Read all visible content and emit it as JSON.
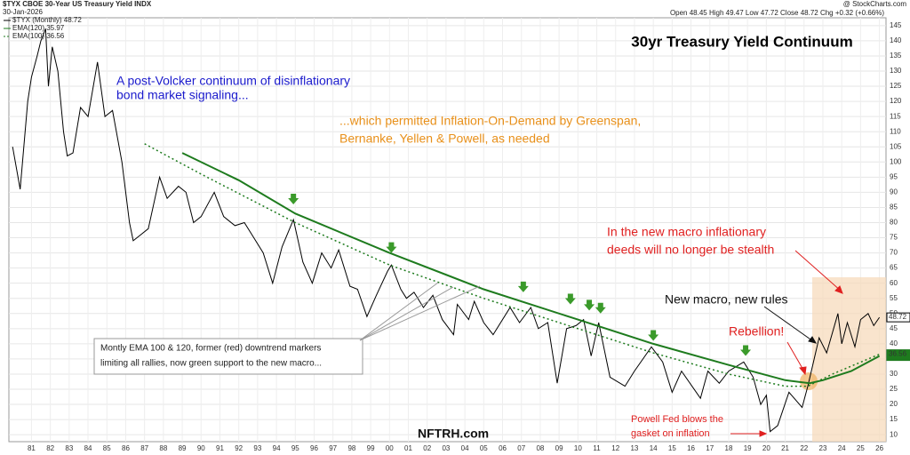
{
  "chart_data": {
    "type": "line",
    "title": "30yr Treasury Yield Continuum",
    "header": {
      "symbol": "$TYX CBOE 30-Year US Treasury Yield INDX",
      "date": "30-Jan-2026",
      "source": "@ StockCharts.com",
      "quote": "Open 48.45 High 49.47 Low 47.72 Close 48.72 Chg +0.32 (+0.66%)"
    },
    "legend": [
      "$TYX (Monthly) 48.72",
      "EMA(120) 35.97",
      "EMA(100) 36.56"
    ],
    "xlim": [
      1979.8,
      2026.35
    ],
    "ylim": [
      7.7,
      147.6
    ],
    "yticks": [
      10,
      15,
      20,
      25,
      30,
      35,
      40,
      45,
      50,
      55,
      60,
      65,
      70,
      75,
      80,
      85,
      90,
      95,
      100,
      105,
      110,
      115,
      120,
      125,
      130,
      135,
      140,
      145
    ],
    "xticks": [
      {
        "value": 1981,
        "label": "81"
      },
      {
        "value": 1982,
        "label": "82"
      },
      {
        "value": 1983,
        "label": "83"
      },
      {
        "value": 1984,
        "label": "84"
      },
      {
        "value": 1985,
        "label": "85"
      },
      {
        "value": 1986,
        "label": "86"
      },
      {
        "value": 1987,
        "label": "87"
      },
      {
        "value": 1988,
        "label": "88"
      },
      {
        "value": 1989,
        "label": "89"
      },
      {
        "value": 1990,
        "label": "90"
      },
      {
        "value": 1991,
        "label": "91"
      },
      {
        "value": 1992,
        "label": "92"
      },
      {
        "value": 1993,
        "label": "93"
      },
      {
        "value": 1994,
        "label": "94"
      },
      {
        "value": 1995,
        "label": "95"
      },
      {
        "value": 1996,
        "label": "96"
      },
      {
        "value": 1997,
        "label": "97"
      },
      {
        "value": 1998,
        "label": "98"
      },
      {
        "value": 1999,
        "label": "99"
      },
      {
        "value": 2000,
        "label": "00"
      },
      {
        "value": 2001,
        "label": "01"
      },
      {
        "value": 2002,
        "label": "02"
      },
      {
        "value": 2003,
        "label": "03"
      },
      {
        "value": 2004,
        "label": "04"
      },
      {
        "value": 2005,
        "label": "05"
      },
      {
        "value": 2006,
        "label": "06"
      },
      {
        "value": 2007,
        "label": "07"
      },
      {
        "value": 2008,
        "label": "08"
      },
      {
        "value": 2009,
        "label": "09"
      },
      {
        "value": 2010,
        "label": "10"
      },
      {
        "value": 2011,
        "label": "11"
      },
      {
        "value": 2012,
        "label": "12"
      },
      {
        "value": 2013,
        "label": "13"
      },
      {
        "value": 2014,
        "label": "14"
      },
      {
        "value": 2015,
        "label": "15"
      },
      {
        "value": 2016,
        "label": "16"
      },
      {
        "value": 2017,
        "label": "17"
      },
      {
        "value": 2018,
        "label": "18"
      },
      {
        "value": 2019,
        "label": "19"
      },
      {
        "value": 2020,
        "label": "20"
      },
      {
        "value": 2021,
        "label": "21"
      },
      {
        "value": 2022,
        "label": "22"
      },
      {
        "value": 2023,
        "label": "23"
      },
      {
        "value": 2024,
        "label": "24"
      },
      {
        "value": 2025,
        "label": "25"
      },
      {
        "value": 2026,
        "label": "26"
      }
    ],
    "grid": true,
    "series": [
      {
        "name": "$TYX (Monthly)",
        "color": "#000000",
        "width": 1,
        "x": [
          1980.0,
          1980.4,
          1980.8,
          1981.0,
          1981.3,
          1981.5,
          1981.75,
          1981.9,
          1982.1,
          1982.4,
          1982.7,
          1982.9,
          1983.2,
          1983.6,
          1984.0,
          1984.5,
          1984.9,
          1985.3,
          1985.8,
          1986.2,
          1986.4,
          1986.8,
          1987.2,
          1987.8,
          1988.2,
          1988.8,
          1989.2,
          1989.6,
          1990.0,
          1990.7,
          1991.2,
          1991.8,
          1992.3,
          1992.8,
          1993.3,
          1993.8,
          1994.3,
          1994.9,
          1995.4,
          1995.9,
          1996.4,
          1996.9,
          1997.3,
          1997.9,
          1998.3,
          1998.8,
          1999.3,
          1999.9,
          2000.1,
          2000.6,
          2000.9,
          2001.3,
          2001.8,
          2002.3,
          2002.8,
          2003.4,
          2003.6,
          2004.2,
          2004.5,
          2005.0,
          2005.5,
          2006.4,
          2006.9,
          2007.5,
          2007.9,
          2008.4,
          2008.9,
          2009.4,
          2009.9,
          2010.3,
          2010.7,
          2011.1,
          2011.7,
          2012.5,
          2013.0,
          2013.9,
          2014.5,
          2015.0,
          2015.5,
          2016.5,
          2016.9,
          2017.5,
          2018.0,
          2018.8,
          2019.3,
          2019.7,
          2020.0,
          2020.2,
          2020.6,
          2021.2,
          2021.9,
          2022.2,
          2022.5,
          2022.8,
          2023.2,
          2023.8,
          2024.0,
          2024.3,
          2024.7,
          2025.0,
          2025.4,
          2025.7,
          2026.0
        ],
        "values": [
          105,
          91,
          120,
          128,
          135,
          140,
          144,
          125,
          138,
          130,
          110,
          102,
          103,
          118,
          115,
          133,
          115,
          117,
          100,
          80,
          74,
          76,
          78,
          95,
          88,
          92,
          90,
          80,
          82,
          90,
          82,
          79,
          80,
          75,
          70,
          60,
          72,
          81,
          67,
          60,
          70,
          65,
          71,
          59,
          58,
          49,
          56,
          64,
          66,
          58,
          55,
          57,
          52,
          56,
          48,
          43,
          53,
          48,
          54,
          47,
          43,
          52,
          47,
          52,
          45,
          47,
          27,
          45,
          46,
          48,
          36,
          47,
          29,
          26,
          31,
          39,
          34,
          24,
          31,
          22,
          31,
          27,
          31,
          34,
          29,
          20,
          23,
          11,
          13,
          24,
          19,
          26,
          34,
          42,
          37,
          50,
          40,
          47,
          39,
          48,
          50,
          46,
          48.72
        ],
        "value_labels": [
          null,
          null,
          null,
          null,
          null,
          null,
          null,
          null,
          null,
          null,
          null,
          null,
          null,
          null,
          null,
          null,
          null,
          null,
          null,
          null,
          null,
          null,
          null,
          null,
          null,
          null,
          null,
          null,
          null,
          null,
          null,
          null,
          null,
          null,
          null,
          null,
          null,
          null,
          null,
          null,
          null,
          null,
          null,
          null,
          null,
          null,
          null,
          null,
          null,
          null,
          null,
          null,
          null,
          null,
          null,
          null,
          null,
          null,
          null,
          null,
          null,
          null,
          null,
          null,
          null,
          null,
          null,
          null,
          null,
          null,
          null,
          null,
          null,
          null,
          null,
          null,
          null,
          null,
          null,
          null,
          null,
          null,
          null,
          null,
          null,
          null,
          null,
          null,
          null,
          null,
          null,
          null,
          null,
          null,
          null,
          null,
          null,
          null,
          null,
          null,
          null,
          null,
          "48.72"
        ]
      },
      {
        "name": "EMA(120)",
        "color": "#1e7b1e",
        "width": 2,
        "x": [
          1989.0,
          1992.0,
          1995.0,
          2000.0,
          2005.0,
          2010.0,
          2014.0,
          2018.0,
          2021.0,
          2022.3,
          2023.0,
          2024.5,
          2026.0
        ],
        "values": [
          103,
          94,
          83,
          70,
          58,
          48,
          40,
          33,
          28,
          27,
          28,
          31,
          35.97
        ],
        "value_labels": [
          null,
          null,
          null,
          null,
          null,
          null,
          null,
          null,
          null,
          null,
          null,
          null,
          "35.97"
        ]
      },
      {
        "name": "EMA(100)",
        "color": "#1e7b1e",
        "width": 1.5,
        "dashed": true,
        "x": [
          1987.0,
          1990.0,
          1995.0,
          2000.0,
          2005.0,
          2010.0,
          2014.0,
          2018.0,
          2021.0,
          2022.2,
          2023.5,
          2026.0
        ],
        "values": [
          106,
          96,
          80,
          66,
          55,
          45,
          37,
          30,
          26,
          26,
          30,
          36.56
        ],
        "value_labels": [
          null,
          null,
          null,
          null,
          null,
          null,
          null,
          null,
          null,
          null,
          null,
          "36.56"
        ]
      }
    ],
    "markers": {
      "color": "#3a9a2a",
      "x": [
        1994.9,
        2000.1,
        2007.1,
        2009.6,
        2010.6,
        2011.2,
        2014.0,
        2018.9
      ],
      "values": [
        86,
        70,
        57,
        53,
        51,
        50,
        41,
        36
      ]
    },
    "annotations": [
      {
        "text": "A post-Volcker continuum of disinflationary",
        "color": "#1a1acc"
      },
      {
        "text": "bond market signaling...",
        "color": "#1a1acc"
      },
      {
        "text": "...which permitted Inflation-On-Demand by Greenspan,",
        "color": "#e8901a"
      },
      {
        "text": "Bernanke, Yellen & Powell, as needed",
        "color": "#e8901a"
      },
      {
        "text": "In the new macro inflationary",
        "color": "#e02020"
      },
      {
        "text": "deeds will no longer be stealth",
        "color": "#e02020"
      },
      {
        "text": "New macro, new rules",
        "color": "#111111"
      },
      {
        "text": "Rebellion!",
        "color": "#e02020"
      },
      {
        "text": "Montly EMA 100 & 120, former (red) downtrend markers",
        "color": "#222222"
      },
      {
        "text": "limiting all rallies, now green support to the new macro...",
        "color": "#222222"
      },
      {
        "text": "Powell Fed blows the",
        "color": "#e02020"
      },
      {
        "text": "gasket on inflation",
        "color": "#e02020"
      },
      {
        "text": "NFTRH.com",
        "color": "#111111"
      }
    ]
  }
}
